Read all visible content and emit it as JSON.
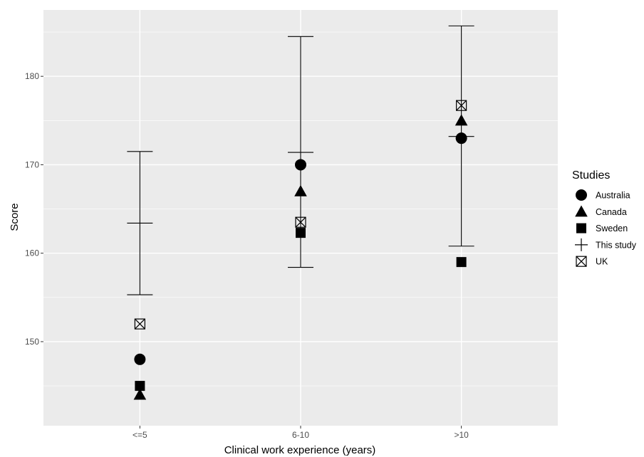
{
  "chart_data": {
    "type": "scatter",
    "title": "",
    "xlabel": "Clinical work experience (years)",
    "ylabel": "Score",
    "categories": [
      "<=5",
      "6-10",
      ">10"
    ],
    "ylim": [
      140.5,
      187.5
    ],
    "yticks": [
      150,
      160,
      170,
      180
    ],
    "grid": true,
    "legend": {
      "title": "Studies",
      "position": "right"
    },
    "series": [
      {
        "name": "Australia",
        "shape": "circle",
        "values": [
          148,
          170,
          173
        ]
      },
      {
        "name": "Canada",
        "shape": "triangle",
        "values": [
          144,
          167,
          175
        ]
      },
      {
        "name": "Sweden",
        "shape": "square",
        "values": [
          145,
          162.3,
          159
        ]
      },
      {
        "name": "This study",
        "shape": "plus",
        "values": [
          163.4,
          171.4,
          173.2
        ],
        "error_low": [
          155.3,
          158.4,
          160.8
        ],
        "error_high": [
          171.5,
          184.5,
          185.7
        ]
      },
      {
        "name": "UK",
        "shape": "square-cross",
        "values": [
          152,
          163.5,
          176.7
        ]
      }
    ],
    "colors": {
      "panel": "#ebebeb",
      "grid": "#ffffff",
      "marks": "#000000",
      "tick_text": "#4d4d4d"
    }
  }
}
